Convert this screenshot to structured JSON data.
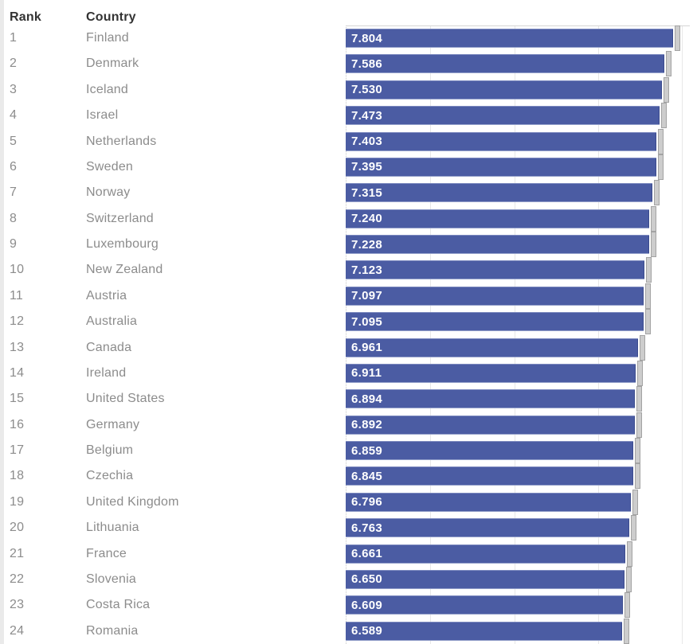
{
  "table": {
    "rank_header": "Rank",
    "country_header": "Country",
    "rows": [
      {
        "rank": "1",
        "country": "Finland",
        "score": "7.804"
      },
      {
        "rank": "2",
        "country": "Denmark",
        "score": "7.586"
      },
      {
        "rank": "3",
        "country": "Iceland",
        "score": "7.530"
      },
      {
        "rank": "4",
        "country": "Israel",
        "score": "7.473"
      },
      {
        "rank": "5",
        "country": "Netherlands",
        "score": "7.403"
      },
      {
        "rank": "6",
        "country": "Sweden",
        "score": "7.395"
      },
      {
        "rank": "7",
        "country": "Norway",
        "score": "7.315"
      },
      {
        "rank": "8",
        "country": "Switzerland",
        "score": "7.240"
      },
      {
        "rank": "9",
        "country": "Luxembourg",
        "score": "7.228"
      },
      {
        "rank": "10",
        "country": "New Zealand",
        "score": "7.123"
      },
      {
        "rank": "11",
        "country": "Austria",
        "score": "7.097"
      },
      {
        "rank": "12",
        "country": "Australia",
        "score": "7.095"
      },
      {
        "rank": "13",
        "country": "Canada",
        "score": "6.961"
      },
      {
        "rank": "14",
        "country": "Ireland",
        "score": "6.911"
      },
      {
        "rank": "15",
        "country": "United States",
        "score": "6.894"
      },
      {
        "rank": "16",
        "country": "Germany",
        "score": "6.892"
      },
      {
        "rank": "17",
        "country": "Belgium",
        "score": "6.859"
      },
      {
        "rank": "18",
        "country": "Czechia",
        "score": "6.845"
      },
      {
        "rank": "19",
        "country": "United Kingdom",
        "score": "6.796"
      },
      {
        "rank": "20",
        "country": "Lithuania",
        "score": "6.763"
      },
      {
        "rank": "21",
        "country": "France",
        "score": "6.661"
      },
      {
        "rank": "22",
        "country": "Slovenia",
        "score": "6.650"
      },
      {
        "rank": "23",
        "country": "Costa Rica",
        "score": "6.609"
      },
      {
        "rank": "24",
        "country": "Romania",
        "score": "6.589"
      }
    ]
  },
  "chart_data": {
    "type": "bar",
    "orientation": "horizontal",
    "title": "",
    "xlabel": "",
    "ylabel": "",
    "categories": [
      "Finland",
      "Denmark",
      "Iceland",
      "Israel",
      "Netherlands",
      "Sweden",
      "Norway",
      "Switzerland",
      "Luxembourg",
      "New Zealand",
      "Austria",
      "Australia",
      "Canada",
      "Ireland",
      "United States",
      "Germany",
      "Belgium",
      "Czechia",
      "United Kingdom",
      "Lithuania",
      "France",
      "Slovenia",
      "Costa Rica",
      "Romania"
    ],
    "values": [
      7.804,
      7.586,
      7.53,
      7.473,
      7.403,
      7.395,
      7.315,
      7.24,
      7.228,
      7.123,
      7.097,
      7.095,
      6.961,
      6.911,
      6.894,
      6.892,
      6.859,
      6.845,
      6.796,
      6.763,
      6.661,
      6.65,
      6.609,
      6.589
    ],
    "data_labels": [
      "7.804",
      "7.586",
      "7.530",
      "7.473",
      "7.403",
      "7.395",
      "7.315",
      "7.240",
      "7.228",
      "7.123",
      "7.097",
      "7.095",
      "6.961",
      "6.911",
      "6.894",
      "6.892",
      "6.859",
      "6.845",
      "6.796",
      "6.763",
      "6.661",
      "6.650",
      "6.609",
      "6.589"
    ],
    "xlim": [
      0,
      8.2
    ],
    "gridlines": [
      2,
      4,
      6,
      8
    ],
    "grid": true,
    "legend": false,
    "end_tick_marks": true,
    "colors": {
      "bar": "#4b5ca3",
      "bar_label": "#ffffff",
      "whisker_fill": "#cdcdcd",
      "whisker_border": "#a3a3a3",
      "gridline": "#e7e7e7",
      "header_text": "#333333",
      "row_text": "#8c8c8c",
      "background": "#ffffff"
    }
  }
}
